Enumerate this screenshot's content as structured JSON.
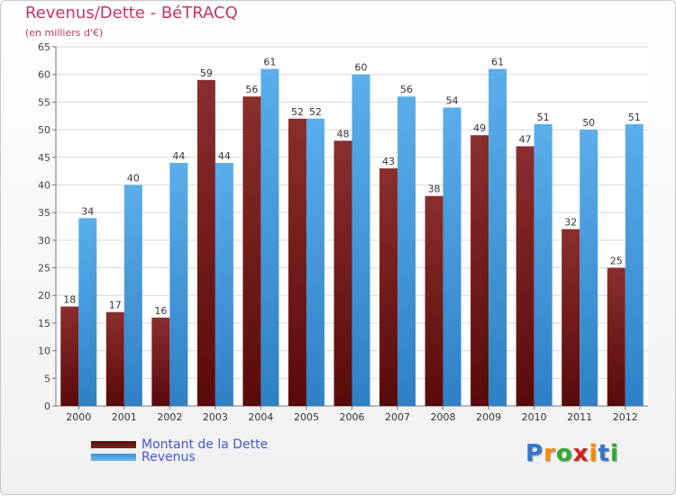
{
  "chart_data": {
    "type": "bar",
    "title": "Revenus/Dette - BéTRACQ",
    "subtitle": "(en milliers d'€)",
    "categories": [
      "2000",
      "2001",
      "2002",
      "2003",
      "2004",
      "2005",
      "2006",
      "2007",
      "2008",
      "2009",
      "2010",
      "2011",
      "2012"
    ],
    "series": [
      {
        "name": "Montant de la Dette",
        "color": "#7a2424",
        "values": [
          18,
          17,
          16,
          59,
          56,
          52,
          48,
          43,
          38,
          49,
          47,
          32,
          25
        ]
      },
      {
        "name": "Revenus",
        "color": "#4fa3e3",
        "values": [
          34,
          40,
          44,
          44,
          61,
          52,
          60,
          56,
          54,
          61,
          51,
          50,
          51
        ]
      }
    ],
    "ylim": [
      0,
      65
    ],
    "yticks": [
      0,
      5,
      10,
      15,
      20,
      25,
      30,
      35,
      40,
      45,
      50,
      55,
      60,
      65
    ],
    "grid": true,
    "legend": "bottom-left"
  },
  "legend": {
    "debt_label": "Montant de la Dette",
    "revenue_label": "Revenus"
  },
  "brand": {
    "letters": [
      "P",
      "r",
      "o",
      "x",
      "i",
      "t",
      "i"
    ]
  }
}
